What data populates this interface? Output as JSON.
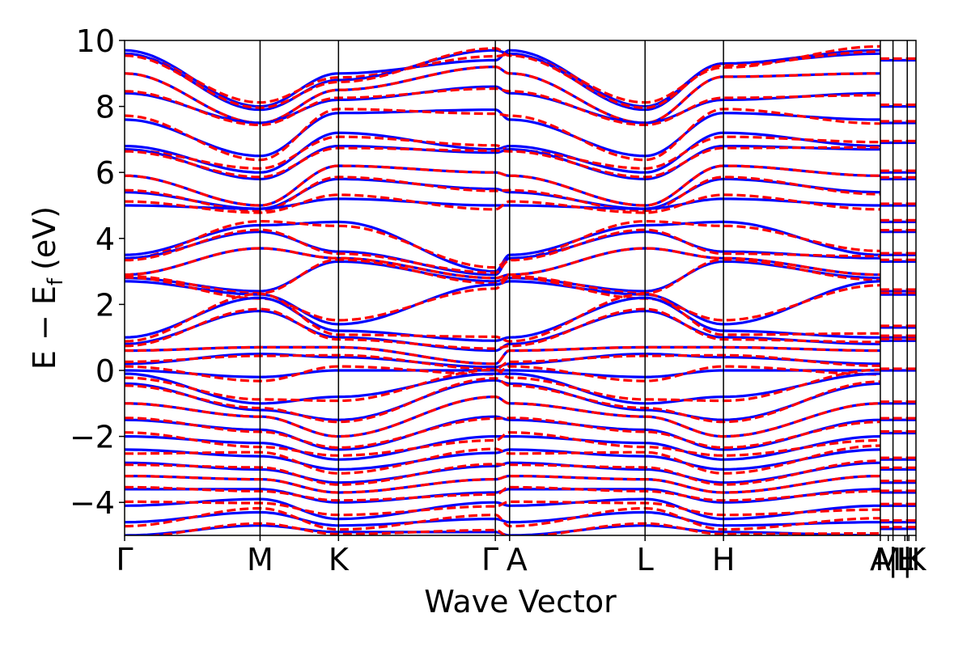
{
  "chart_data": {
    "type": "line",
    "title": "",
    "xlabel": "Wave Vector",
    "ylabel": "E − E",
    "ylabel_sub": "f",
    "ylabel_unit": "(eV)",
    "ylim": [
      -5,
      10
    ],
    "yticks": [
      -4,
      -2,
      0,
      2,
      4,
      6,
      8,
      10
    ],
    "ytick_labels": [
      "−4",
      "−2",
      "0",
      "2",
      "4",
      "6",
      "8",
      "10"
    ],
    "grid": false,
    "legend": "none",
    "kpoint_labels": [
      {
        "label": "Γ",
        "k": 0.0
      },
      {
        "label": "M",
        "k": 1.71
      },
      {
        "label": "K",
        "k": 2.7
      },
      {
        "label": "Γ",
        "k": 4.68
      },
      {
        "label": "A",
        "k": 4.86
      },
      {
        "label": "L",
        "k": 6.57
      },
      {
        "label": "H",
        "k": 7.56
      },
      {
        "label": "A",
        "k": 9.54
      },
      {
        "label": "M",
        "k": 9.64
      },
      {
        "label": "|",
        "k": 9.7
      },
      {
        "label": "L",
        "k": 9.85
      },
      {
        "label": "|",
        "k": 9.88
      },
      {
        "label": "H",
        "k": 9.9
      },
      {
        "label": "K",
        "k": 9.99
      }
    ],
    "k_range": [
      0.0,
      9.99
    ],
    "series": [
      {
        "name": "",
        "color": "#0000ff",
        "style": "solid"
      },
      {
        "name": "",
        "color": "#ff0000",
        "style": "dashed"
      }
    ],
    "segment_ends": [
      0.0,
      1.71,
      2.7,
      4.68,
      4.86,
      6.57,
      7.56,
      9.54,
      9.7,
      9.88,
      9.99
    ],
    "bands": [
      [
        9.7,
        8.0,
        9.0,
        9.4,
        9.7,
        8.0,
        9.3,
        9.7
      ],
      [
        9.6,
        7.9,
        8.8,
        9.7,
        9.6,
        7.9,
        9.3,
        9.6
      ],
      [
        9.0,
        7.5,
        8.5,
        9.2,
        9.0,
        7.5,
        8.9,
        9.0
      ],
      [
        8.4,
        7.5,
        8.2,
        8.6,
        8.4,
        7.5,
        8.2,
        8.4
      ],
      [
        7.6,
        6.5,
        7.8,
        7.9,
        7.6,
        6.5,
        7.8,
        7.6
      ],
      [
        6.8,
        6.0,
        7.2,
        6.7,
        6.8,
        6.0,
        7.2,
        6.8
      ],
      [
        6.7,
        5.8,
        6.8,
        6.6,
        6.7,
        5.8,
        6.8,
        6.7
      ],
      [
        5.9,
        5.0,
        6.2,
        6.0,
        5.9,
        5.0,
        6.2,
        5.9
      ],
      [
        5.4,
        4.9,
        5.8,
        5.5,
        5.4,
        4.9,
        5.8,
        5.4
      ],
      [
        5.0,
        4.9,
        5.2,
        5.0,
        5.0,
        4.9,
        5.2,
        5.0
      ],
      [
        3.5,
        4.4,
        4.5,
        3.0,
        3.5,
        4.4,
        4.5,
        3.5
      ],
      [
        3.4,
        4.2,
        3.6,
        2.9,
        3.4,
        4.2,
        3.6,
        3.4
      ],
      [
        2.9,
        3.7,
        3.4,
        2.8,
        2.9,
        3.7,
        3.4,
        2.9
      ],
      [
        2.8,
        2.4,
        3.3,
        2.7,
        2.8,
        2.4,
        3.3,
        2.8
      ],
      [
        2.7,
        2.3,
        1.4,
        2.6,
        2.7,
        2.3,
        1.4,
        2.7
      ],
      [
        1.0,
        2.2,
        1.2,
        0.9,
        1.0,
        2.2,
        1.2,
        1.0
      ],
      [
        0.8,
        1.8,
        1.0,
        0.6,
        0.8,
        1.8,
        1.0,
        0.8
      ],
      [
        0.6,
        0.7,
        0.7,
        0.2,
        0.6,
        0.7,
        0.7,
        0.6
      ],
      [
        0.2,
        0.5,
        0.4,
        0.1,
        0.2,
        0.5,
        0.4,
        0.2
      ],
      [
        0.0,
        -0.2,
        0.0,
        0.0,
        0.0,
        -0.2,
        0.0,
        0.0
      ],
      [
        -0.1,
        -1.0,
        -0.8,
        -0.1,
        -0.1,
        -1.0,
        -0.8,
        -0.1
      ],
      [
        -0.4,
        -1.2,
        -1.5,
        -0.3,
        -0.4,
        -1.2,
        -1.5,
        -0.4
      ],
      [
        -1.0,
        -1.4,
        -2.0,
        -0.8,
        -1.0,
        -1.4,
        -2.0,
        -1.0
      ],
      [
        -1.5,
        -1.8,
        -2.4,
        -1.4,
        -1.5,
        -1.8,
        -2.4,
        -1.5
      ],
      [
        -2.0,
        -2.2,
        -2.7,
        -2.0,
        -2.0,
        -2.2,
        -2.7,
        -2.0
      ],
      [
        -2.4,
        -2.6,
        -3.0,
        -2.5,
        -2.4,
        -2.6,
        -3.0,
        -2.4
      ],
      [
        -2.8,
        -3.0,
        -3.4,
        -2.9,
        -2.8,
        -3.0,
        -3.4,
        -2.8
      ],
      [
        -3.2,
        -3.3,
        -3.7,
        -3.3,
        -3.2,
        -3.3,
        -3.7,
        -3.2
      ],
      [
        -3.6,
        -3.6,
        -4.0,
        -3.7,
        -3.6,
        -3.6,
        -4.0,
        -3.6
      ],
      [
        -4.1,
        -3.9,
        -4.5,
        -4.0,
        -4.1,
        -3.9,
        -4.5,
        -4.1
      ],
      [
        -4.6,
        -4.3,
        -4.7,
        -4.5,
        -4.6,
        -4.3,
        -4.7,
        -4.6
      ],
      [
        -5.0,
        -4.7,
        -4.9,
        -4.9,
        -5.0,
        -4.7,
        -4.9,
        -5.0
      ]
    ],
    "short_segment_levels": [
      9.4,
      8.0,
      7.5,
      6.9,
      6.0,
      5.8,
      5.0,
      4.5,
      4.2,
      3.5,
      3.3,
      2.4,
      2.3,
      1.3,
      1.0,
      0.9,
      0.0,
      -1.0,
      -1.5,
      -1.9,
      -2.7,
      -3.0,
      -3.4,
      -3.7,
      -4.1,
      -4.6,
      -4.8
    ]
  }
}
